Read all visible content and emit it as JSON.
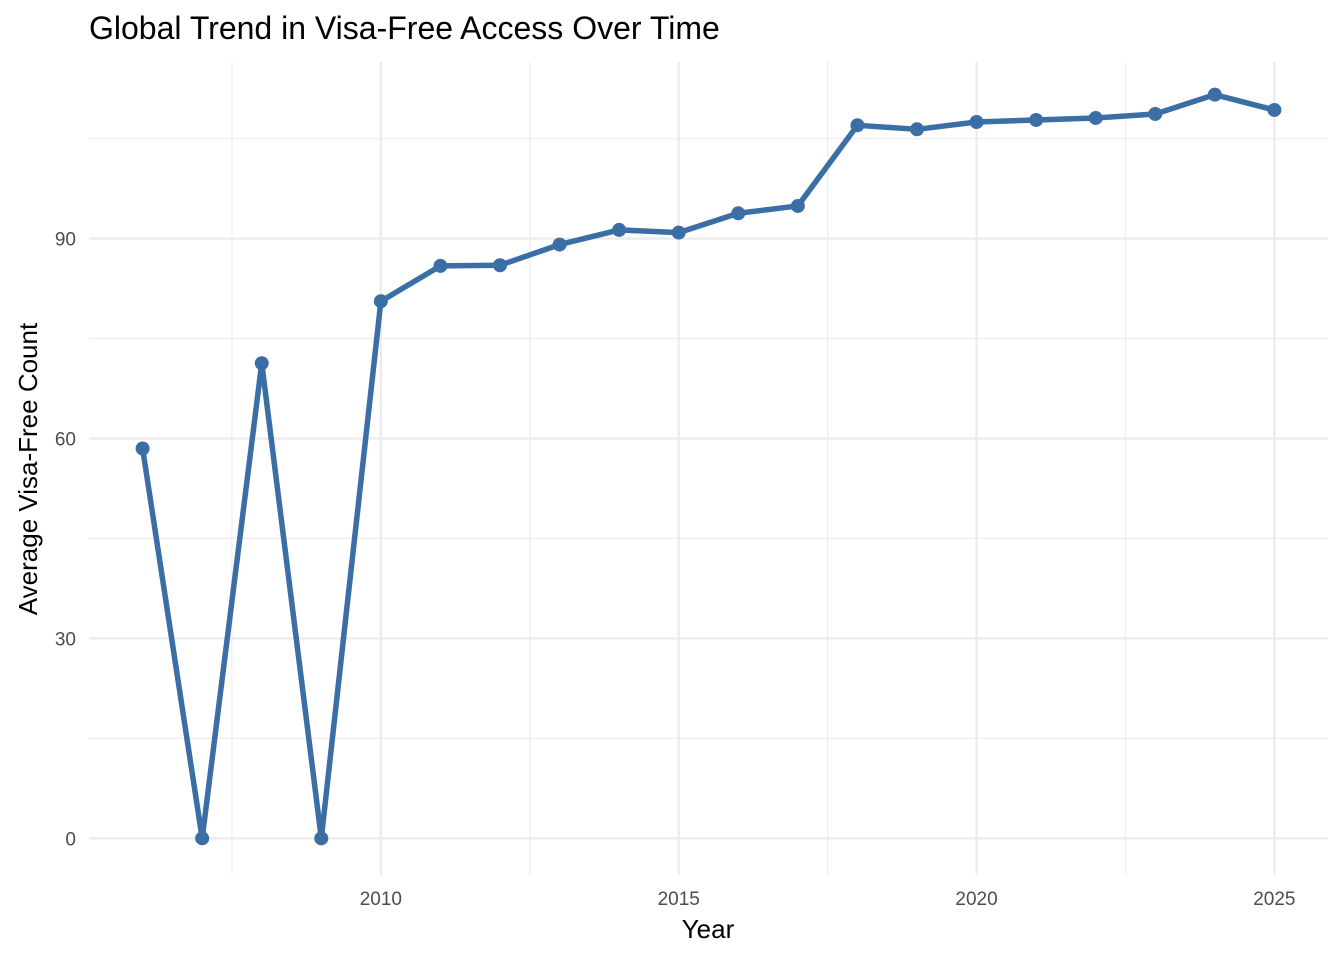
{
  "chart_data": {
    "type": "line",
    "title": "Global Trend in Visa-Free Access Over Time",
    "xlabel": "Year",
    "ylabel": "Average Visa-Free Count",
    "xlim": [
      2005.1,
      2025.9
    ],
    "ylim": [
      -5.5,
      116.5
    ],
    "x_ticks": [
      2010,
      2015,
      2020,
      2025
    ],
    "y_ticks": [
      0,
      30,
      60,
      90
    ],
    "grid": true,
    "legend": "none",
    "color": "#3A6EA5",
    "series": [
      {
        "x": [
          2006,
          2007,
          2008,
          2009,
          2010,
          2011,
          2012,
          2013,
          2014,
          2015,
          2016,
          2017,
          2018,
          2019,
          2020,
          2021,
          2022,
          2023,
          2024,
          2025
        ],
        "y": [
          58.5,
          0,
          71.3,
          0,
          80.6,
          85.9,
          86.0,
          89.1,
          91.3,
          90.9,
          93.8,
          94.9,
          107.0,
          106.4,
          107.5,
          107.8,
          108.1,
          108.7,
          111.6,
          109.3
        ]
      }
    ]
  }
}
